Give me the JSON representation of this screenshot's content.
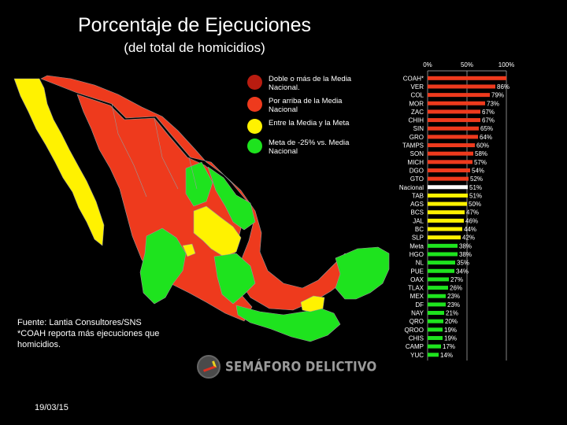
{
  "title": "Porcentaje de Ejecuciones",
  "subtitle": "(del total de homicidios)",
  "colors": {
    "dark_red": "#b81c10",
    "red": "#ee3a1d",
    "yellow": "#fff200",
    "green": "#1ee31e",
    "white": "#ffffff"
  },
  "legend": [
    {
      "label": "Doble o más de la Media Nacional.",
      "color": "#b81c10"
    },
    {
      "label": "Por arriba de la Media Nacional",
      "color": "#ee3a1d"
    },
    {
      "label": "Entre la Media y la Meta",
      "color": "#fff200"
    },
    {
      "label": "Meta de -25% vs. Media Nacional",
      "color": "#1ee31e"
    }
  ],
  "source": {
    "line1": "Fuente: Lantia Consultores/SNS",
    "line2": "*COAH reporta más ejecuciones que",
    "line3": "homicidios."
  },
  "date": "19/03/15",
  "brand": "SEMÁFORO DELICTIVO",
  "chart_data": {
    "type": "bar",
    "orientation": "horizontal",
    "xlim": [
      0,
      100
    ],
    "x_ticks": [
      "0%",
      "50%",
      "100%"
    ],
    "grid": true,
    "categories": [
      "COAH*",
      "VER",
      "COL",
      "MOR",
      "ZAC",
      "CHIH",
      "SIN",
      "GRO",
      "TAMPS",
      "SON",
      "MICH",
      "DGO",
      "GTO",
      "Nacional",
      "TAB",
      "AGS",
      "BCS",
      "JAL",
      "BC",
      "SLP",
      "Meta",
      "HGO",
      "NL",
      "PUE",
      "OAX",
      "TLAX",
      "MEX",
      "DF",
      "NAY",
      "QRO",
      "QROO",
      "CHIS",
      "CAMP",
      "YUC"
    ],
    "values": [
      100,
      86,
      79,
      73,
      67,
      67,
      65,
      64,
      60,
      58,
      57,
      54,
      52,
      51,
      51,
      50,
      47,
      46,
      44,
      42,
      38,
      38,
      35,
      34,
      27,
      26,
      23,
      23,
      21,
      20,
      19,
      19,
      17,
      14
    ],
    "labels": [
      "",
      "86%",
      "79%",
      "73%",
      "67%",
      "67%",
      "65%",
      "64%",
      "60%",
      "58%",
      "57%",
      "54%",
      "52%",
      "51%",
      "51%",
      "50%",
      "47%",
      "46%",
      "44%",
      "42%",
      "38%",
      "38%",
      "35%",
      "34%",
      "27%",
      "26%",
      "23%",
      "23%",
      "21%",
      "20%",
      "19%",
      "19%",
      "17%",
      "14%"
    ],
    "bar_colors": [
      "#ee3a1d",
      "#ee3a1d",
      "#ee3a1d",
      "#ee3a1d",
      "#ee3a1d",
      "#ee3a1d",
      "#ee3a1d",
      "#ee3a1d",
      "#ee3a1d",
      "#ee3a1d",
      "#ee3a1d",
      "#ee3a1d",
      "#ee3a1d",
      "#ffffff",
      "#fff200",
      "#fff200",
      "#fff200",
      "#fff200",
      "#fff200",
      "#fff200",
      "#1ee31e",
      "#1ee31e",
      "#1ee31e",
      "#1ee31e",
      "#1ee31e",
      "#1ee31e",
      "#1ee31e",
      "#1ee31e",
      "#1ee31e",
      "#1ee31e",
      "#1ee31e",
      "#1ee31e",
      "#1ee31e",
      "#1ee31e"
    ]
  }
}
